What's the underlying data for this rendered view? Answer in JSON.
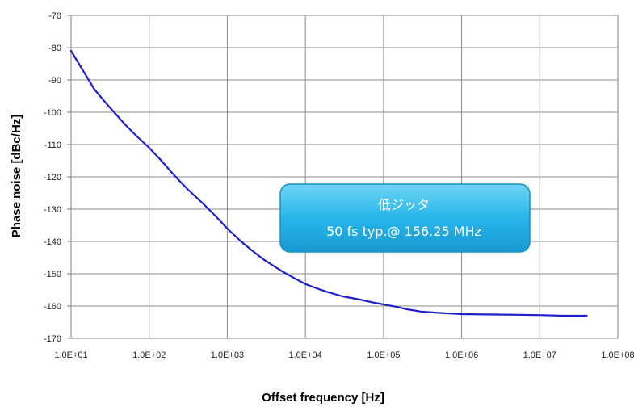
{
  "chart_data": {
    "type": "line",
    "title": "",
    "xlabel": "Offset frequency [Hz]",
    "ylabel": "Phase noise [dBc/Hz]",
    "xscale": "log",
    "xlim": [
      10,
      100000000
    ],
    "ylim": [
      -170,
      -70
    ],
    "grid": true,
    "x_tick_labels": [
      "1.0E+01",
      "1.0E+02",
      "1.0E+03",
      "1.0E+04",
      "1.0E+05",
      "1.0E+06",
      "1.0E+07",
      "1.0E+08"
    ],
    "y_tick_labels": [
      "-70",
      "-80",
      "-90",
      "-100",
      "-110",
      "-120",
      "-130",
      "-140",
      "-150",
      "-160",
      "-170"
    ],
    "series": [
      {
        "color": "#1f1fcc",
        "x": [
          10,
          15,
          20,
          30,
          50,
          70,
          100,
          150,
          200,
          300,
          500,
          700,
          1000,
          1500,
          2000,
          3000,
          5000,
          7000,
          10000,
          15000,
          20000,
          30000,
          50000,
          70000,
          100000,
          150000,
          200000,
          300000,
          500000,
          700000,
          1000000,
          2000000,
          5000000,
          10000000,
          20000000,
          40000000
        ],
        "y": [
          -81,
          -88,
          -93,
          -98,
          -104,
          -107.5,
          -111,
          -115.5,
          -119,
          -123.5,
          -128.5,
          -132,
          -136,
          -140,
          -142.5,
          -145.8,
          -149.2,
          -151.2,
          -153.2,
          -154.8,
          -155.8,
          -157,
          -158,
          -158.8,
          -159.5,
          -160.3,
          -161,
          -161.7,
          -162.1,
          -162.3,
          -162.5,
          -162.6,
          -162.7,
          -162.8,
          -163,
          -163
        ]
      }
    ],
    "annotation": {
      "lines": [
        "低ジッタ",
        "50 fs typ.@ 156.25 MHz"
      ],
      "fill": "#22b4e8"
    }
  }
}
